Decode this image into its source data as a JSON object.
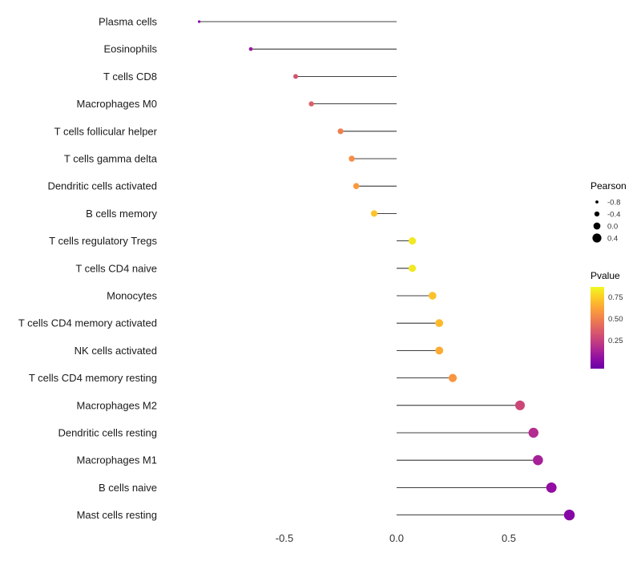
{
  "chart_data": {
    "type": "scatter",
    "variant": "horizontal-lollipop",
    "title": "",
    "xlabel": "",
    "ylabel": "",
    "x_ticks": [
      -0.5,
      0.0,
      0.5
    ],
    "x_tick_labels": [
      "-0.5",
      "0.0",
      "0.5"
    ],
    "xlim": [
      -0.95,
      1.05
    ],
    "baseline": 0,
    "grid": false,
    "background": "#ffffff",
    "stem_color": "#000000",
    "points": [
      {
        "category": "Plasma cells",
        "pearson": -0.88,
        "pvalue": 0.05,
        "color": "#8405a7"
      },
      {
        "category": "Eosinophils",
        "pearson": -0.65,
        "pvalue": 0.1,
        "color": "#9c179e"
      },
      {
        "category": "T cells CD8",
        "pearson": -0.45,
        "pvalue": 0.4,
        "color": "#d5536f"
      },
      {
        "category": "Macrophages M0",
        "pearson": -0.38,
        "pvalue": 0.45,
        "color": "#dd5e66"
      },
      {
        "category": "T cells follicular helper",
        "pearson": -0.25,
        "pvalue": 0.58,
        "color": "#ef7e4f"
      },
      {
        "category": "T cells gamma delta",
        "pearson": -0.2,
        "pvalue": 0.62,
        "color": "#f68d45"
      },
      {
        "category": "Dendritic cells activated",
        "pearson": -0.18,
        "pvalue": 0.65,
        "color": "#fa983e"
      },
      {
        "category": "B cells memory",
        "pearson": -0.1,
        "pvalue": 0.75,
        "color": "#fdc42a"
      },
      {
        "category": "T cells regulatory  Tregs",
        "pearson": 0.07,
        "pvalue": 0.85,
        "color": "#f1e922"
      },
      {
        "category": "T cells CD4 naive",
        "pearson": 0.07,
        "pvalue": 0.85,
        "color": "#f1e922"
      },
      {
        "category": "Monocytes",
        "pearson": 0.16,
        "pvalue": 0.74,
        "color": "#fdc129"
      },
      {
        "category": "T cells CD4 memory activated",
        "pearson": 0.19,
        "pvalue": 0.72,
        "color": "#fdba2d"
      },
      {
        "category": "NK cells activated",
        "pearson": 0.19,
        "pvalue": 0.68,
        "color": "#fcab33"
      },
      {
        "category": "T cells CD4 memory resting",
        "pearson": 0.25,
        "pvalue": 0.62,
        "color": "#f9953f"
      },
      {
        "category": "Macrophages M2",
        "pearson": 0.55,
        "pvalue": 0.42,
        "color": "#cc4778"
      },
      {
        "category": "Dendritic cells resting",
        "pearson": 0.61,
        "pvalue": 0.28,
        "color": "#b32c8f"
      },
      {
        "category": "Macrophages M1",
        "pearson": 0.63,
        "pvalue": 0.22,
        "color": "#a62098"
      },
      {
        "category": "B cells naive",
        "pearson": 0.69,
        "pvalue": 0.12,
        "color": "#930ca3"
      },
      {
        "category": "Mast cells resting",
        "pearson": 0.77,
        "pvalue": 0.06,
        "color": "#8707a6"
      }
    ],
    "legend": {
      "size": {
        "title": "Pearson",
        "dot_color": "#000000",
        "entries": [
          {
            "label": "-0.8",
            "value": -0.8
          },
          {
            "label": "-0.4",
            "value": -0.4
          },
          {
            "label": "0.0",
            "value": 0.0
          },
          {
            "label": "0.4",
            "value": 0.4
          }
        ]
      },
      "color": {
        "title": "Pvalue",
        "tick_labels": [
          "0.75",
          "0.50",
          "0.25"
        ],
        "gradient_top_to_bottom": [
          "#f0f921",
          "#fcce25",
          "#fca636",
          "#f2844b",
          "#e16462",
          "#cc4778",
          "#b12a90",
          "#8f0da4",
          "#6a00a8"
        ]
      }
    }
  }
}
